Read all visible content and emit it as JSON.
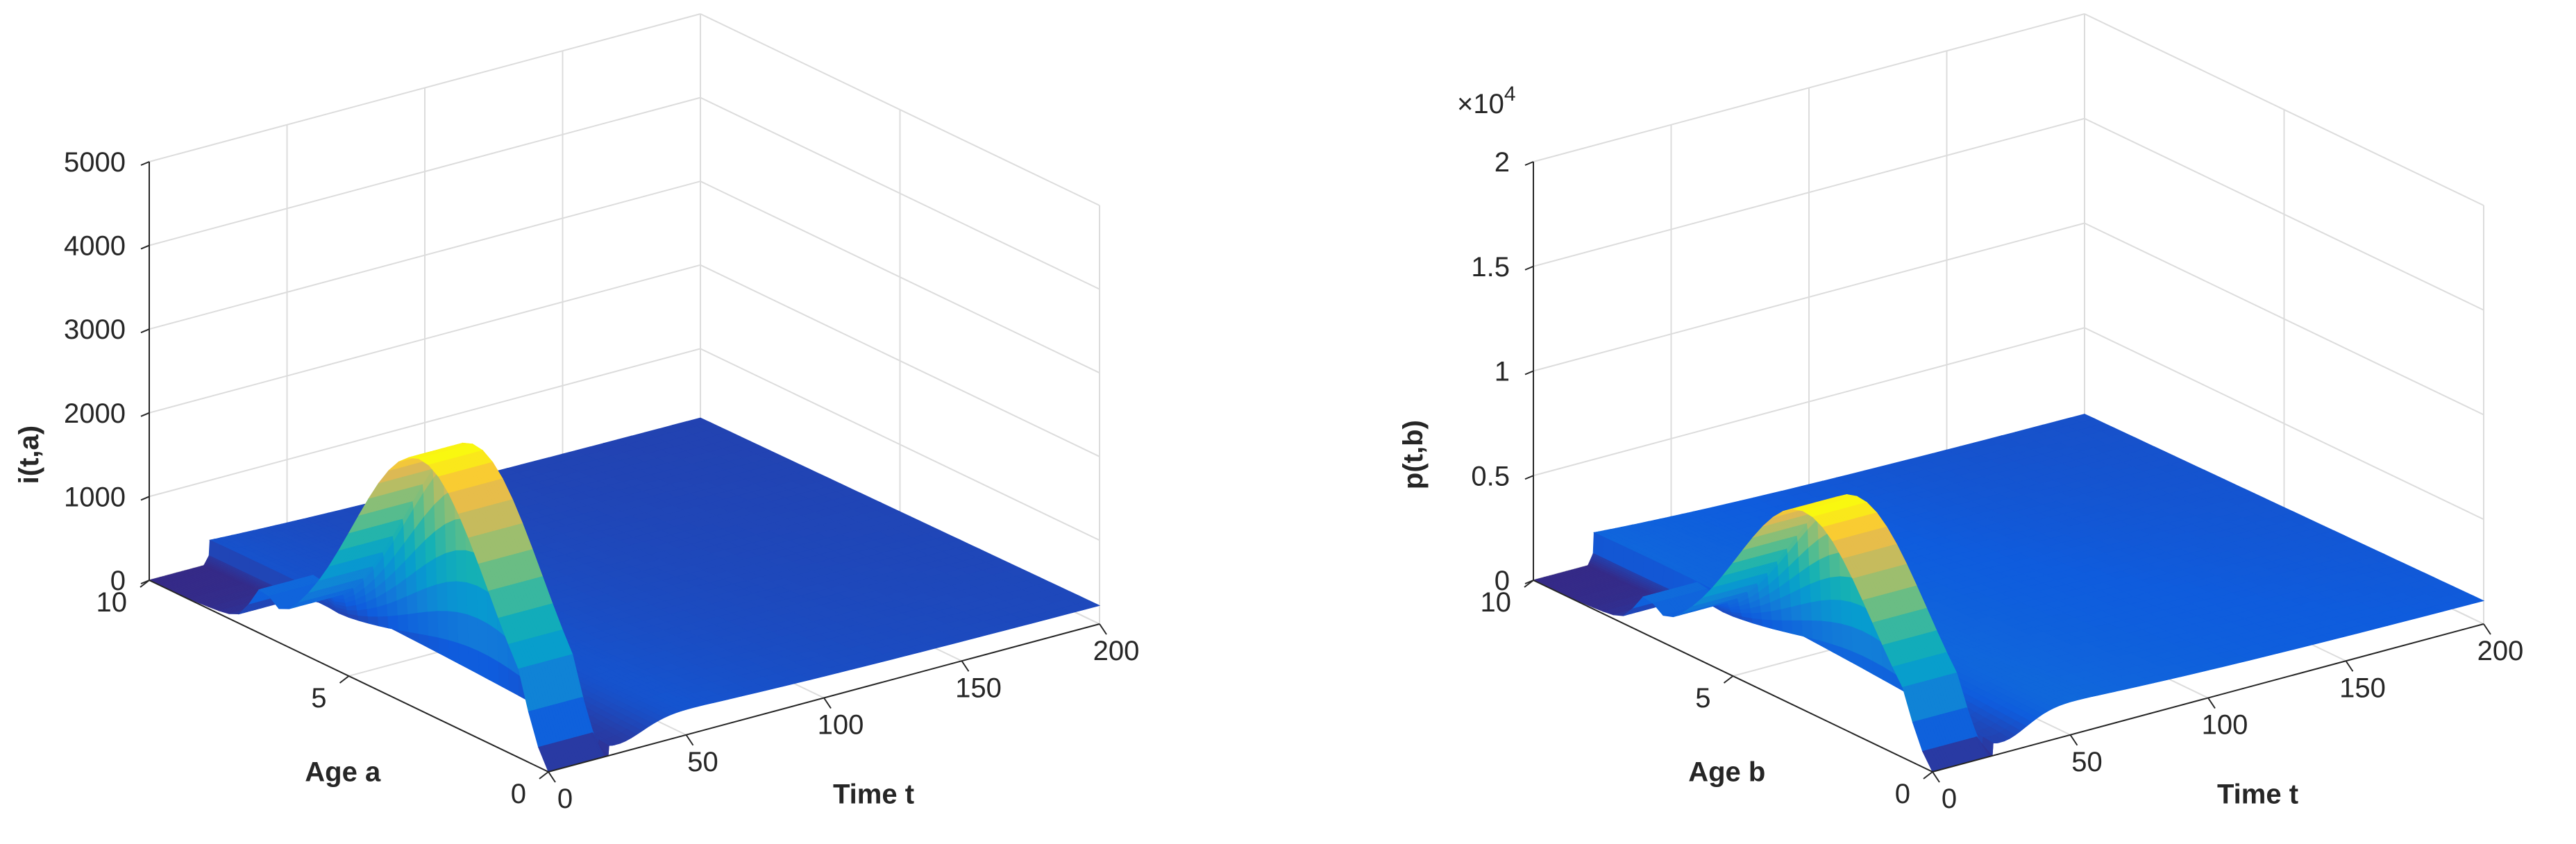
{
  "chart_data": [
    {
      "type": "surface",
      "zlabel": "i(t,a)",
      "xlabel": "Time t",
      "ylabel": "Age a",
      "x_ticks": [
        "0",
        "50",
        "100",
        "150",
        "200"
      ],
      "y_ticks": [
        "0",
        "5",
        "10"
      ],
      "z_ticks": [
        "0",
        "1000",
        "2000",
        "3000",
        "4000",
        "5000"
      ],
      "xlim": [
        0,
        200
      ],
      "ylim": [
        0,
        10
      ],
      "zlim": [
        0,
        5000
      ],
      "exponent": "",
      "surface": {
        "peak_value": 3000,
        "peak_time": 8,
        "drop_time": 22,
        "plateau_value": 380,
        "ridge_value": 350,
        "ridge_age": 7.2,
        "dip_value": 120,
        "dip_time": 24,
        "long_time_value": 220
      },
      "colormap": "parula"
    },
    {
      "type": "surface",
      "zlabel": "p(t,b)",
      "xlabel": "Time t",
      "ylabel": "Age b",
      "x_ticks": [
        "0",
        "50",
        "100",
        "150",
        "200"
      ],
      "y_ticks": [
        "0",
        "5",
        "10"
      ],
      "z_ticks": [
        "0",
        "0.5",
        "1",
        "1.5",
        "2"
      ],
      "xlim": [
        0,
        200
      ],
      "ylim": [
        0,
        10
      ],
      "zlim": [
        0,
        2
      ],
      "exponent_base": "×10",
      "exponent_power": "4",
      "surface": {
        "peak_value": 0.95,
        "peak_time": 8,
        "drop_time": 22,
        "plateau_value": 0.2,
        "ridge_value": 0.12,
        "ridge_age": 7.2,
        "dip_value": 0.06,
        "dip_time": 24,
        "long_time_value": 0.11
      },
      "colormap": "parula"
    }
  ]
}
